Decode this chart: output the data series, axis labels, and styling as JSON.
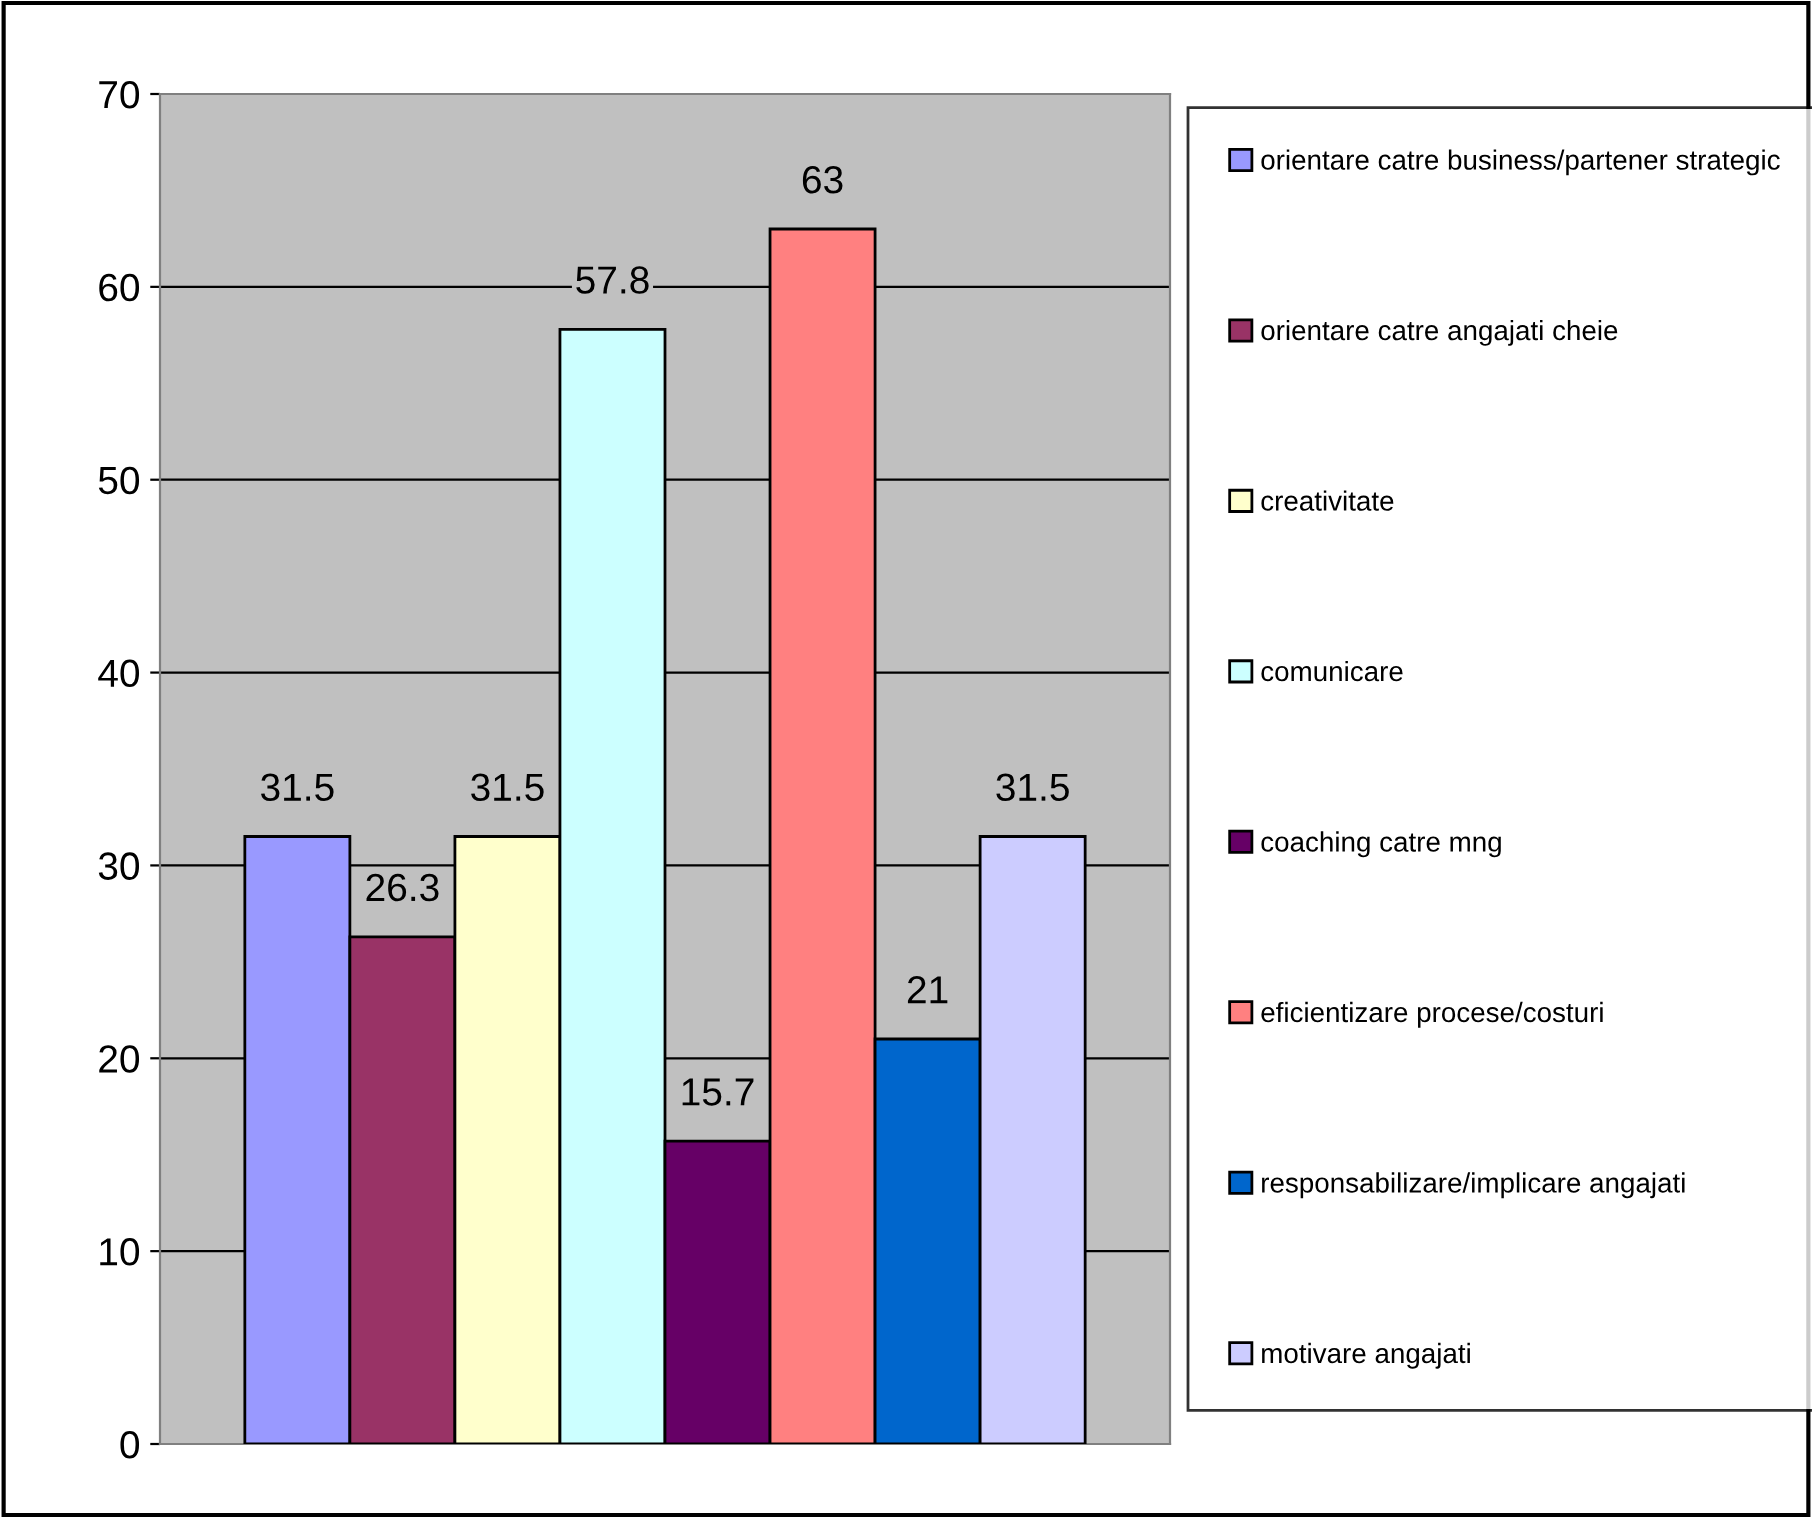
{
  "chart_data": {
    "type": "bar",
    "categories": [
      null
    ],
    "series": [
      {
        "name": "orientare catre business/partener strategic",
        "color": "#9999ff",
        "values": [
          31.5
        ]
      },
      {
        "name": "orientare catre angajati cheie",
        "color": "#993366",
        "values": [
          26.3
        ]
      },
      {
        "name": "creativitate",
        "color": "#ffffcc",
        "values": [
          31.5
        ]
      },
      {
        "name": "comunicare",
        "color": "#ccffff",
        "values": [
          57.8
        ]
      },
      {
        "name": "coaching catre mng",
        "color": "#660066",
        "values": [
          15.7
        ]
      },
      {
        "name": "eficientizare procese/costuri",
        "color": "#ff8080",
        "values": [
          63
        ]
      },
      {
        "name": "responsabilizare/implicare angajati",
        "color": "#0066cc",
        "values": [
          21
        ]
      },
      {
        "name": "motivare angajati",
        "color": "#ccccff",
        "values": [
          31.5
        ]
      }
    ],
    "ylim": [
      0,
      70
    ],
    "yticks": [
      0,
      10,
      20,
      30,
      40,
      50,
      60,
      70
    ],
    "grid": "y",
    "legend": "right",
    "data_labels": true
  }
}
